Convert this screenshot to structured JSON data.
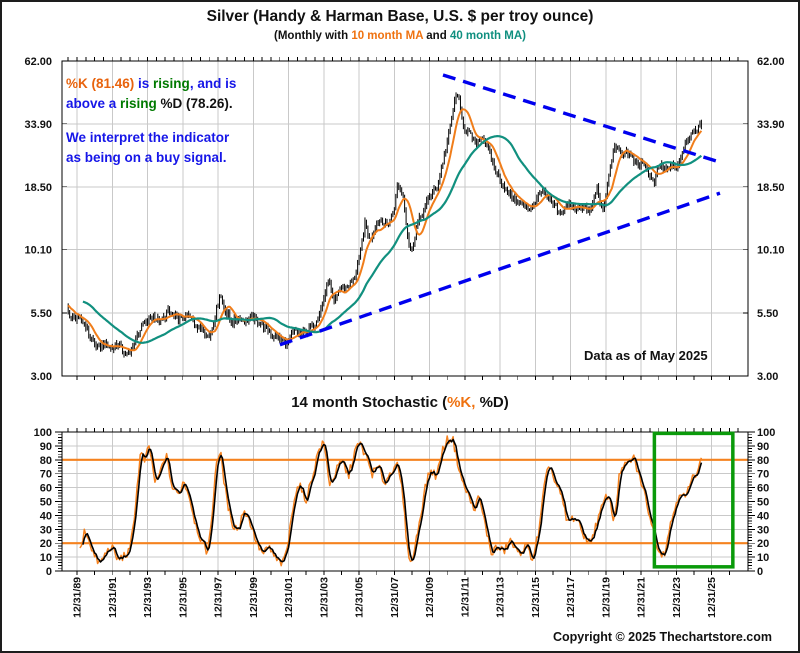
{
  "header": {
    "title": "Silver (Handy & Harman Base, U.S. $ per troy ounce)",
    "subtitle_parts": [
      {
        "text": "(Monthly with ",
        "color": "#111111"
      },
      {
        "text": "10 month MA",
        "color": "#ef7210"
      },
      {
        "text": " and ",
        "color": "#111111"
      },
      {
        "text": "40 month MA)",
        "color": "#0f8f7f"
      }
    ]
  },
  "annotations": {
    "signal_lines": [
      [
        {
          "text": "%K (81.46)",
          "color": "#e8630d"
        },
        {
          "text": " is ",
          "color": "#1616e8"
        },
        {
          "text": "rising",
          "color": "#007a00"
        },
        {
          "text": ", and is",
          "color": "#1616e8"
        }
      ],
      [
        {
          "text": "above a ",
          "color": "#1616e8"
        },
        {
          "text": "rising",
          "color": "#007a00"
        },
        {
          "text": " %D (78.26).",
          "color": "#111111"
        }
      ]
    ],
    "interpretation_lines": [
      [
        {
          "text": "We interpret the indicator",
          "color": "#1616e8"
        }
      ],
      [
        {
          "text": "as being on a buy signal.",
          "color": "#1616e8"
        }
      ]
    ],
    "data_as_of": "Data as of May 2025"
  },
  "stoch": {
    "title_parts": [
      {
        "text": "14 month Stochastic (",
        "color": "#111111"
      },
      {
        "text": "%K,",
        "color": "#ef7210"
      },
      {
        "text": " %D)",
        "color": "#111111"
      }
    ]
  },
  "footer": {
    "copyright": "Copyright © 2025 Thechartstore.com"
  },
  "chart_data": [
    {
      "type": "bar",
      "title": "Silver monthly price, log scale, with 10 and 40 month moving averages",
      "y_scale": "log",
      "ylim": [
        3,
        62
      ],
      "y_ticks": [
        {
          "label": "62.00",
          "value": 62
        },
        {
          "label": "33.90",
          "value": 33.9
        },
        {
          "label": "18.50",
          "value": 18.5
        },
        {
          "label": "10.10",
          "value": 10.1
        },
        {
          "label": "5.50",
          "value": 5.5
        },
        {
          "label": "3.00",
          "value": 3
        }
      ],
      "x_ticks": [
        {
          "label": "12/31/89",
          "year": 1990
        },
        {
          "label": "12/31/91",
          "year": 1992
        },
        {
          "label": "12/31/93",
          "year": 1994
        },
        {
          "label": "12/31/95",
          "year": 1996
        },
        {
          "label": "12/31/97",
          "year": 1998
        },
        {
          "label": "12/31/99",
          "year": 2000
        },
        {
          "label": "12/31/01",
          "year": 2002
        },
        {
          "label": "12/31/03",
          "year": 2004
        },
        {
          "label": "12/31/05",
          "year": 2006
        },
        {
          "label": "12/31/07",
          "year": 2008
        },
        {
          "label": "12/31/09",
          "year": 2010
        },
        {
          "label": "12/31/11",
          "year": 2012
        },
        {
          "label": "12/31/13",
          "year": 2014
        },
        {
          "label": "12/31/15",
          "year": 2016
        },
        {
          "label": "12/31/17",
          "year": 2018
        },
        {
          "label": "12/31/19",
          "year": 2020
        },
        {
          "label": "12/31/21",
          "year": 2022
        },
        {
          "label": "12/31/23",
          "year": 2024
        },
        {
          "label": "12/31/25",
          "year": 2026
        }
      ],
      "price_anchors": [
        [
          1986.0,
          5.9
        ],
        [
          1986.5,
          5.4
        ],
        [
          1987.0,
          5.6
        ],
        [
          1987.3,
          6.6
        ],
        [
          1987.7,
          7.5
        ],
        [
          1988.0,
          6.7
        ],
        [
          1988.4,
          6.4
        ],
        [
          1988.8,
          6.2
        ],
        [
          1989.1,
          5.9
        ],
        [
          1989.42,
          5.7
        ],
        [
          1989.7,
          5.2
        ],
        [
          1990.0,
          5.3
        ],
        [
          1990.4,
          5.0
        ],
        [
          1990.8,
          4.3
        ],
        [
          1991.2,
          3.9
        ],
        [
          1991.5,
          4.1
        ],
        [
          1991.9,
          3.9
        ],
        [
          1992.3,
          4.1
        ],
        [
          1992.7,
          3.75
        ],
        [
          1993.0,
          3.7
        ],
        [
          1993.35,
          4.35
        ],
        [
          1993.7,
          4.9
        ],
        [
          1994.0,
          5.1
        ],
        [
          1994.35,
          5.35
        ],
        [
          1994.75,
          5.0
        ],
        [
          1995.15,
          5.6
        ],
        [
          1995.5,
          5.3
        ],
        [
          1995.9,
          5.2
        ],
        [
          1996.3,
          5.4
        ],
        [
          1996.7,
          4.9
        ],
        [
          1997.1,
          4.7
        ],
        [
          1997.5,
          4.35
        ],
        [
          1997.8,
          5.2
        ],
        [
          1998.1,
          6.6
        ],
        [
          1998.45,
          5.6
        ],
        [
          1998.8,
          5.0
        ],
        [
          1999.2,
          5.3
        ],
        [
          1999.55,
          5.1
        ],
        [
          1999.9,
          5.3
        ],
        [
          2000.3,
          5.0
        ],
        [
          2000.7,
          4.8
        ],
        [
          2001.1,
          4.4
        ],
        [
          2001.5,
          4.3
        ],
        [
          2001.9,
          4.1
        ],
        [
          2002.3,
          4.6
        ],
        [
          2002.7,
          4.5
        ],
        [
          2003.1,
          4.65
        ],
        [
          2003.5,
          5.0
        ],
        [
          2003.9,
          5.9
        ],
        [
          2004.28,
          7.7
        ],
        [
          2004.55,
          5.9
        ],
        [
          2004.9,
          7.0
        ],
        [
          2005.3,
          7.0
        ],
        [
          2005.7,
          7.6
        ],
        [
          2006.05,
          9.6
        ],
        [
          2006.35,
          13.2
        ],
        [
          2006.6,
          11.0
        ],
        [
          2006.95,
          12.9
        ],
        [
          2007.25,
          13.4
        ],
        [
          2007.6,
          12.8
        ],
        [
          2007.95,
          14.5
        ],
        [
          2008.2,
          19.3
        ],
        [
          2008.5,
          17.0
        ],
        [
          2008.8,
          10.8
        ],
        [
          2009.0,
          10.0
        ],
        [
          2009.3,
          13.0
        ],
        [
          2009.65,
          14.6
        ],
        [
          2010.0,
          17.0
        ],
        [
          2010.4,
          18.4
        ],
        [
          2010.75,
          23.5
        ],
        [
          2011.1,
          31.0
        ],
        [
          2011.45,
          43.0
        ],
        [
          2011.6,
          45.5
        ],
        [
          2011.8,
          36.0
        ],
        [
          2012.0,
          32.5
        ],
        [
          2012.3,
          30.5
        ],
        [
          2012.6,
          27.5
        ],
        [
          2012.95,
          30.5
        ],
        [
          2013.3,
          26.5
        ],
        [
          2013.8,
          21.0
        ],
        [
          2014.4,
          17.5
        ],
        [
          2015.0,
          16.0
        ],
        [
          2015.6,
          14.8
        ],
        [
          2016.1,
          16.5
        ],
        [
          2016.35,
          18.0
        ],
        [
          2016.7,
          16.5
        ],
        [
          2017.05,
          15.5
        ],
        [
          2017.45,
          14.0
        ],
        [
          2017.8,
          15.8
        ],
        [
          2018.2,
          15.0
        ],
        [
          2018.7,
          15.3
        ],
        [
          2019.1,
          14.4
        ],
        [
          2019.5,
          18.3
        ],
        [
          2019.85,
          14.3
        ],
        [
          2020.2,
          21.5
        ],
        [
          2020.5,
          27.8
        ],
        [
          2020.85,
          25.0
        ],
        [
          2021.15,
          26.3
        ],
        [
          2021.5,
          24.3
        ],
        [
          2021.8,
          22.2
        ],
        [
          2022.1,
          23.8
        ],
        [
          2022.45,
          20.3
        ],
        [
          2022.75,
          19.4
        ],
        [
          2023.05,
          23.3
        ],
        [
          2023.4,
          21.3
        ],
        [
          2023.7,
          23.3
        ],
        [
          2024.0,
          22.3
        ],
        [
          2024.3,
          25.5
        ],
        [
          2024.6,
          29.3
        ],
        [
          2024.9,
          30.8
        ],
        [
          2025.15,
          32.3
        ],
        [
          2025.42,
          33.6
        ]
      ],
      "ma_series": [
        {
          "name": "10 month MA",
          "window": 10,
          "color": "#f07d1a"
        },
        {
          "name": "40 month MA",
          "window": 40,
          "color": "#11907f"
        }
      ],
      "trendlines": [
        {
          "name": "descending-resistance",
          "from": [
            2010.76,
            54.2
          ],
          "to": [
            2026.58,
            23.3
          ],
          "style": "dashed",
          "color": "#0000ee"
        },
        {
          "name": "ascending-support",
          "from": [
            2001.51,
            4.05
          ],
          "to": [
            2026.47,
            17.4
          ],
          "style": "dashed",
          "color": "#0000ee"
        }
      ],
      "bar_color": "#000000"
    },
    {
      "type": "line",
      "title": "14 month Stochastic (%K, %D)",
      "ylim": [
        0,
        100
      ],
      "y_tick_step": 10,
      "overbought_level": 80,
      "oversold_level": 20,
      "level_color": "#f5821f",
      "k_color": "#f5821f",
      "d_color": "#000000",
      "d_rule": "3-month moving average of %K",
      "k_latest": 81.46,
      "d_latest": 78.26,
      "k_anchors": [
        [
          1989.9,
          20
        ],
        [
          1990.2,
          14
        ],
        [
          1990.45,
          30
        ],
        [
          1990.7,
          22
        ],
        [
          1991.0,
          10
        ],
        [
          1991.3,
          5
        ],
        [
          1991.65,
          13
        ],
        [
          1991.95,
          18
        ],
        [
          1992.3,
          8
        ],
        [
          1992.7,
          11
        ],
        [
          1993.0,
          14
        ],
        [
          1993.3,
          45
        ],
        [
          1993.6,
          85
        ],
        [
          1993.85,
          79
        ],
        [
          1994.1,
          90
        ],
        [
          1994.45,
          62
        ],
        [
          1994.75,
          72
        ],
        [
          1995.05,
          84
        ],
        [
          1995.4,
          60
        ],
        [
          1995.75,
          55
        ],
        [
          1996.05,
          65
        ],
        [
          1996.35,
          55
        ],
        [
          1996.7,
          35
        ],
        [
          1997.05,
          22
        ],
        [
          1997.35,
          13
        ],
        [
          1997.6,
          30
        ],
        [
          1997.9,
          80
        ],
        [
          1998.15,
          84
        ],
        [
          1998.5,
          50
        ],
        [
          1998.85,
          33
        ],
        [
          1999.2,
          30
        ],
        [
          1999.45,
          45
        ],
        [
          1999.8,
          36
        ],
        [
          2000.2,
          20
        ],
        [
          2000.55,
          12
        ],
        [
          2000.9,
          17
        ],
        [
          2001.3,
          8
        ],
        [
          2001.7,
          5
        ],
        [
          2002.0,
          22
        ],
        [
          2002.3,
          52
        ],
        [
          2002.6,
          63
        ],
        [
          2002.95,
          50
        ],
        [
          2003.3,
          65
        ],
        [
          2003.7,
          87
        ],
        [
          2004.0,
          92
        ],
        [
          2004.35,
          62
        ],
        [
          2004.75,
          73
        ],
        [
          2005.05,
          79
        ],
        [
          2005.4,
          68
        ],
        [
          2005.75,
          86
        ],
        [
          2006.05,
          92
        ],
        [
          2006.4,
          82
        ],
        [
          2006.75,
          70
        ],
        [
          2007.1,
          75
        ],
        [
          2007.45,
          63
        ],
        [
          2007.85,
          72
        ],
        [
          2008.1,
          79
        ],
        [
          2008.45,
          58
        ],
        [
          2008.75,
          15
        ],
        [
          2009.0,
          6
        ],
        [
          2009.35,
          30
        ],
        [
          2009.75,
          60
        ],
        [
          2010.05,
          73
        ],
        [
          2010.4,
          68
        ],
        [
          2010.7,
          86
        ],
        [
          2011.0,
          94
        ],
        [
          2011.3,
          96
        ],
        [
          2011.6,
          78
        ],
        [
          2011.9,
          62
        ],
        [
          2012.2,
          55
        ],
        [
          2012.5,
          44
        ],
        [
          2012.8,
          53
        ],
        [
          2013.0,
          42
        ],
        [
          2013.5,
          13
        ],
        [
          2013.8,
          17
        ],
        [
          2014.2,
          14
        ],
        [
          2014.6,
          22
        ],
        [
          2015.0,
          12
        ],
        [
          2015.45,
          18
        ],
        [
          2015.85,
          9
        ],
        [
          2016.2,
          28
        ],
        [
          2016.5,
          60
        ],
        [
          2016.8,
          78
        ],
        [
          2017.1,
          64
        ],
        [
          2017.45,
          55
        ],
        [
          2017.8,
          35
        ],
        [
          2018.25,
          39
        ],
        [
          2018.7,
          27
        ],
        [
          2019.1,
          20
        ],
        [
          2019.5,
          35
        ],
        [
          2019.9,
          50
        ],
        [
          2020.15,
          56
        ],
        [
          2020.45,
          35
        ],
        [
          2020.8,
          72
        ],
        [
          2021.15,
          76
        ],
        [
          2021.55,
          82
        ],
        [
          2022.05,
          62
        ],
        [
          2022.4,
          45
        ],
        [
          2022.7,
          28
        ],
        [
          2023.0,
          15
        ],
        [
          2023.3,
          12
        ],
        [
          2023.6,
          30
        ],
        [
          2023.9,
          45
        ],
        [
          2024.2,
          58
        ],
        [
          2024.5,
          52
        ],
        [
          2024.8,
          63
        ],
        [
          2025.1,
          71
        ],
        [
          2025.42,
          81.46
        ]
      ],
      "highlight_box": {
        "x_from": 2022.75,
        "x_to": 2027.2,
        "y_from": 3,
        "y_to": 99,
        "color": "#0a9a0a"
      }
    }
  ]
}
